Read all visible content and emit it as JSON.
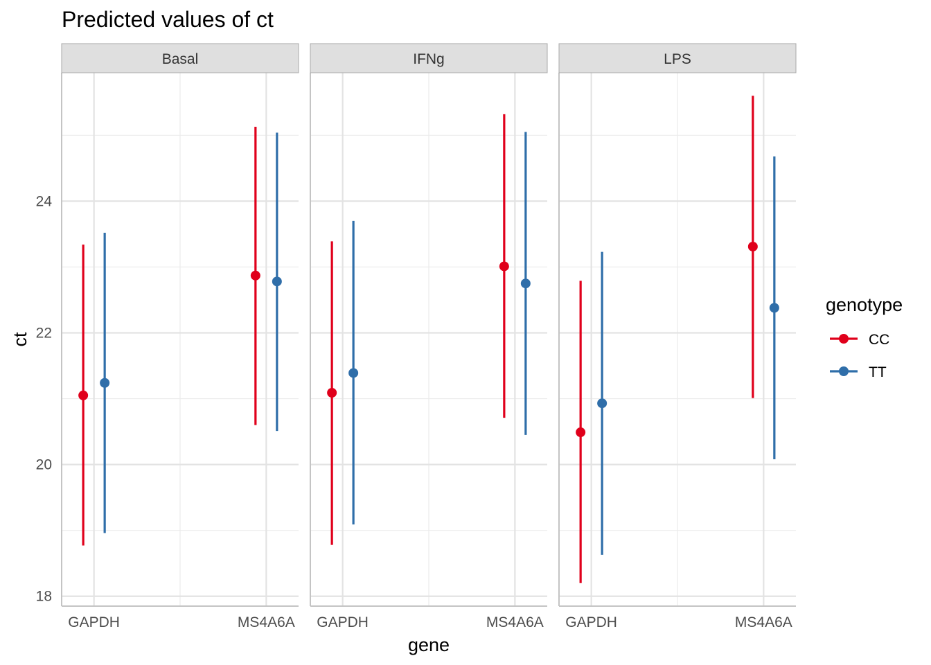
{
  "chart_data": {
    "type": "pointrange",
    "title": "Predicted values of ct",
    "xlabel": "gene",
    "ylabel": "ct",
    "ylim": [
      17.85,
      25.95
    ],
    "y_ticks": [
      18,
      20,
      22,
      24
    ],
    "grid": true,
    "legend": {
      "title": "genotype",
      "placement": "right",
      "entries": [
        "CC",
        "TT"
      ]
    },
    "series_colors": {
      "CC": "#e0001b",
      "TT": "#2f6ea9"
    },
    "categories": [
      "GAPDH",
      "MS4A6A"
    ],
    "facets": [
      {
        "label": "Basal",
        "series": [
          {
            "name": "CC",
            "points": [
              {
                "gene": "GAPDH",
                "y": 21.05,
                "low": 18.77,
                "high": 23.34
              },
              {
                "gene": "MS4A6A",
                "y": 22.87,
                "low": 20.6,
                "high": 25.13
              }
            ]
          },
          {
            "name": "TT",
            "points": [
              {
                "gene": "GAPDH",
                "y": 21.24,
                "low": 18.96,
                "high": 23.52
              },
              {
                "gene": "MS4A6A",
                "y": 22.78,
                "low": 20.51,
                "high": 25.04
              }
            ]
          }
        ]
      },
      {
        "label": "IFNg",
        "series": [
          {
            "name": "CC",
            "points": [
              {
                "gene": "GAPDH",
                "y": 21.09,
                "low": 18.78,
                "high": 23.39
              },
              {
                "gene": "MS4A6A",
                "y": 23.01,
                "low": 20.71,
                "high": 25.32
              }
            ]
          },
          {
            "name": "TT",
            "points": [
              {
                "gene": "GAPDH",
                "y": 21.39,
                "low": 19.09,
                "high": 23.7
              },
              {
                "gene": "MS4A6A",
                "y": 22.75,
                "low": 20.45,
                "high": 25.05
              }
            ]
          }
        ]
      },
      {
        "label": "LPS",
        "series": [
          {
            "name": "CC",
            "points": [
              {
                "gene": "GAPDH",
                "y": 20.49,
                "low": 18.2,
                "high": 22.79
              },
              {
                "gene": "MS4A6A",
                "y": 23.31,
                "low": 21.01,
                "high": 25.6
              }
            ]
          },
          {
            "name": "TT",
            "points": [
              {
                "gene": "GAPDH",
                "y": 20.93,
                "low": 18.63,
                "high": 23.23
              },
              {
                "gene": "MS4A6A",
                "y": 22.38,
                "low": 20.08,
                "high": 24.68
              }
            ]
          }
        ]
      }
    ]
  }
}
